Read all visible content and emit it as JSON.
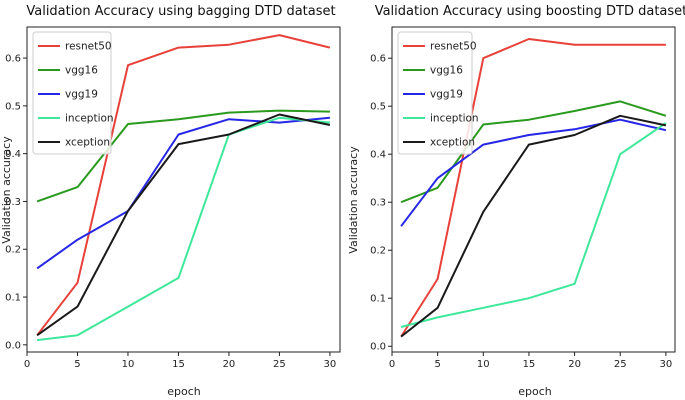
{
  "chart_data": [
    {
      "type": "line",
      "title": "Validation Accuracy using bagging DTD dataset",
      "xlabel": "epoch",
      "ylabel": "Validation accuracy",
      "xlim": [
        0,
        31
      ],
      "ylim": [
        -0.015,
        0.665
      ],
      "xticks": [
        0,
        5,
        10,
        15,
        20,
        25,
        30
      ],
      "yticks": [
        0.0,
        0.1,
        0.2,
        0.3,
        0.4,
        0.5,
        0.6
      ],
      "grid": false,
      "legend_position": "top-left",
      "x": [
        1,
        5,
        10,
        15,
        20,
        25,
        30
      ],
      "series": [
        {
          "name": "resnet50",
          "color": "#e8413a",
          "values": [
            0.02,
            0.13,
            0.585,
            0.622,
            0.628,
            0.648,
            0.622
          ]
        },
        {
          "name": "vgg16",
          "color": "#2a9a1e",
          "values": [
            0.3,
            0.33,
            0.462,
            0.472,
            0.486,
            0.49,
            0.488
          ]
        },
        {
          "name": "vgg19",
          "color": "#2626e6",
          "values": [
            0.16,
            0.22,
            0.28,
            0.44,
            0.472,
            0.465,
            0.475
          ]
        },
        {
          "name": "inception",
          "color": "#3ee89a",
          "values": [
            0.01,
            0.02,
            0.08,
            0.14,
            0.44,
            0.475,
            0.465
          ]
        },
        {
          "name": "xception",
          "color": "#1a1a1a",
          "values": [
            0.02,
            0.08,
            0.28,
            0.42,
            0.44,
            0.482,
            0.46
          ]
        }
      ]
    },
    {
      "type": "line",
      "title": "Validation Accuracy using boosting DTD dataset",
      "xlabel": "epoch",
      "ylabel": "Validation accuracy",
      "xlim": [
        0,
        31
      ],
      "ylim": [
        -0.012,
        0.665
      ],
      "xticks": [
        0,
        5,
        10,
        15,
        20,
        25,
        30
      ],
      "yticks": [
        0.0,
        0.1,
        0.2,
        0.3,
        0.4,
        0.5,
        0.6
      ],
      "grid": false,
      "legend_position": "top-left",
      "x": [
        1,
        5,
        10,
        15,
        20,
        25,
        30
      ],
      "series": [
        {
          "name": "resnet50",
          "color": "#e8413a",
          "values": [
            0.02,
            0.14,
            0.6,
            0.64,
            0.628,
            0.628,
            0.628
          ]
        },
        {
          "name": "vgg16",
          "color": "#2a9a1e",
          "values": [
            0.3,
            0.33,
            0.462,
            0.472,
            0.49,
            0.51,
            0.48
          ]
        },
        {
          "name": "vgg19",
          "color": "#2626e6",
          "values": [
            0.25,
            0.35,
            0.42,
            0.44,
            0.452,
            0.472,
            0.45
          ]
        },
        {
          "name": "inception",
          "color": "#3ee89a",
          "values": [
            0.04,
            0.06,
            0.08,
            0.1,
            0.13,
            0.4,
            0.465
          ]
        },
        {
          "name": "xception",
          "color": "#1a1a1a",
          "values": [
            0.02,
            0.08,
            0.28,
            0.42,
            0.44,
            0.48,
            0.46
          ]
        }
      ]
    }
  ]
}
